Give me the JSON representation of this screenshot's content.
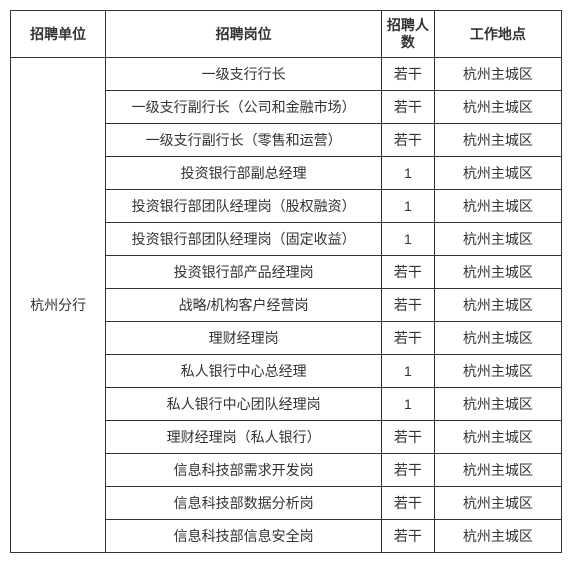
{
  "table": {
    "headers": {
      "unit": "招聘单位",
      "position": "招聘岗位",
      "count": "招聘人数",
      "location": "工作地点"
    },
    "unit": "杭州分行",
    "rows": [
      {
        "position": "一级支行行长",
        "count": "若干",
        "location": "杭州主城区"
      },
      {
        "position": "一级支行副行长（公司和金融市场）",
        "count": "若干",
        "location": "杭州主城区"
      },
      {
        "position": "一级支行副行长（零售和运营）",
        "count": "若干",
        "location": "杭州主城区"
      },
      {
        "position": "投资银行部副总经理",
        "count": "1",
        "location": "杭州主城区"
      },
      {
        "position": "投资银行部团队经理岗（股权融资）",
        "count": "1",
        "location": "杭州主城区"
      },
      {
        "position": "投资银行部团队经理岗（固定收益）",
        "count": "1",
        "location": "杭州主城区"
      },
      {
        "position": "投资银行部产品经理岗",
        "count": "若干",
        "location": "杭州主城区"
      },
      {
        "position": "战略/机构客户经营岗",
        "count": "若干",
        "location": "杭州主城区"
      },
      {
        "position": "理财经理岗",
        "count": "若干",
        "location": "杭州主城区"
      },
      {
        "position": "私人银行中心总经理",
        "count": "1",
        "location": "杭州主城区"
      },
      {
        "position": "私人银行中心团队经理岗",
        "count": "1",
        "location": "杭州主城区"
      },
      {
        "position": "理财经理岗（私人银行）",
        "count": "若干",
        "location": "杭州主城区"
      },
      {
        "position": "信息科技部需求开发岗",
        "count": "若干",
        "location": "杭州主城区"
      },
      {
        "position": "信息科技部数据分析岗",
        "count": "若干",
        "location": "杭州主城区"
      },
      {
        "position": "信息科技部信息安全岗",
        "count": "若干",
        "location": "杭州主城区"
      }
    ]
  }
}
